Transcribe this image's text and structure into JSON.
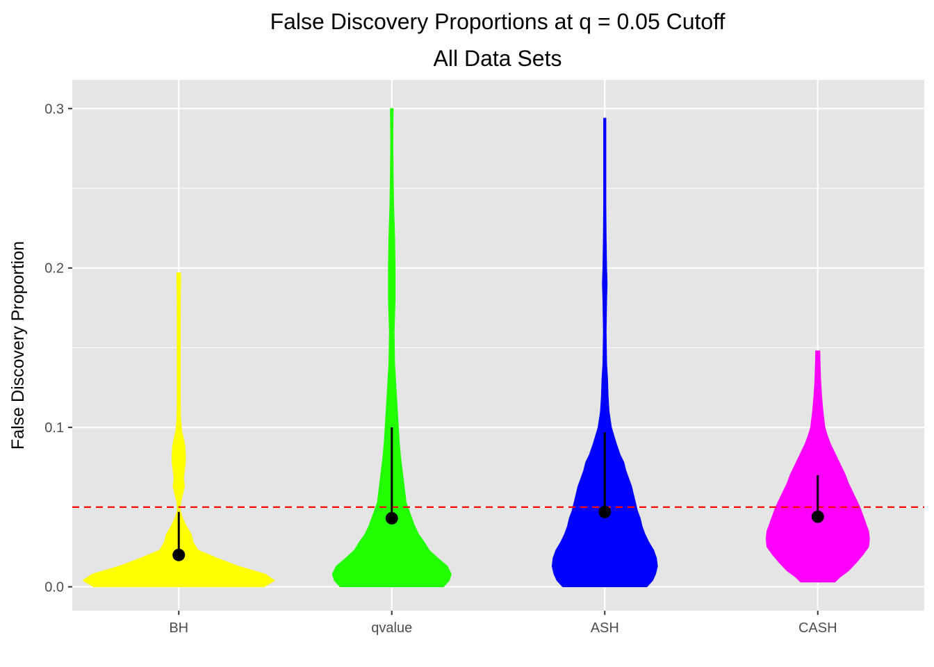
{
  "chart_data": {
    "type": "violin",
    "title": "False Discovery Proportions at q = 0.05 Cutoff",
    "subtitle": "All Data Sets",
    "xlabel": "",
    "ylabel": "False Discovery Proportion",
    "categories": [
      "BH",
      "qvalue",
      "ASH",
      "CASH"
    ],
    "yticks": [
      "0.0",
      "0.1",
      "0.2",
      "0.3"
    ],
    "ylim": [
      -0.015,
      0.318
    ],
    "grid": true,
    "legend": "none",
    "reference_line": {
      "y": 0.05,
      "color": "#ff0000",
      "style": "dashed"
    },
    "colors": [
      "#ffff00",
      "#22ff00",
      "#0000ff",
      "#ff00ff"
    ],
    "summary": [
      {
        "name": "BH",
        "median": 0.02,
        "upper": 0.047,
        "lower": 0.02
      },
      {
        "name": "qvalue",
        "median": 0.043,
        "upper": 0.1,
        "lower": 0.043
      },
      {
        "name": "ASH",
        "median": 0.047,
        "upper": 0.097,
        "lower": 0.047
      },
      {
        "name": "CASH",
        "median": 0.044,
        "upper": 0.07,
        "lower": 0.044
      }
    ],
    "violins": [
      {
        "name": "BH",
        "density": [
          [
            0.0,
            0.89
          ],
          [
            0.004,
            1.0
          ],
          [
            0.008,
            0.9
          ],
          [
            0.013,
            0.62
          ],
          [
            0.018,
            0.4
          ],
          [
            0.023,
            0.2
          ],
          [
            0.028,
            0.15
          ],
          [
            0.033,
            0.13
          ],
          [
            0.038,
            0.08
          ],
          [
            0.043,
            0.04
          ],
          [
            0.048,
            0.015
          ],
          [
            0.053,
            0.02
          ],
          [
            0.058,
            0.04
          ],
          [
            0.063,
            0.06
          ],
          [
            0.068,
            0.05
          ],
          [
            0.073,
            0.06
          ],
          [
            0.078,
            0.07
          ],
          [
            0.083,
            0.07
          ],
          [
            0.088,
            0.065
          ],
          [
            0.093,
            0.05
          ],
          [
            0.098,
            0.03
          ],
          [
            0.105,
            0.02
          ],
          [
            0.12,
            0.016
          ],
          [
            0.14,
            0.016
          ],
          [
            0.16,
            0.016
          ],
          [
            0.18,
            0.017
          ],
          [
            0.19,
            0.02
          ],
          [
            0.197,
            0.02
          ]
        ]
      },
      {
        "name": "qvalue",
        "density": [
          [
            0.0,
            0.54
          ],
          [
            0.004,
            0.6
          ],
          [
            0.008,
            0.62
          ],
          [
            0.013,
            0.58
          ],
          [
            0.018,
            0.48
          ],
          [
            0.023,
            0.39
          ],
          [
            0.028,
            0.34
          ],
          [
            0.033,
            0.28
          ],
          [
            0.038,
            0.24
          ],
          [
            0.043,
            0.21
          ],
          [
            0.048,
            0.18
          ],
          [
            0.053,
            0.15
          ],
          [
            0.058,
            0.14
          ],
          [
            0.063,
            0.13
          ],
          [
            0.068,
            0.12
          ],
          [
            0.073,
            0.11
          ],
          [
            0.078,
            0.1
          ],
          [
            0.083,
            0.09
          ],
          [
            0.09,
            0.08
          ],
          [
            0.1,
            0.07
          ],
          [
            0.11,
            0.06
          ],
          [
            0.12,
            0.05
          ],
          [
            0.13,
            0.04
          ],
          [
            0.14,
            0.03
          ],
          [
            0.16,
            0.025
          ],
          [
            0.18,
            0.035
          ],
          [
            0.2,
            0.035
          ],
          [
            0.22,
            0.03
          ],
          [
            0.24,
            0.02
          ],
          [
            0.26,
            0.015
          ],
          [
            0.28,
            0.012
          ],
          [
            0.3,
            0.015
          ]
        ]
      },
      {
        "name": "ASH",
        "density": [
          [
            0.0,
            0.44
          ],
          [
            0.004,
            0.5
          ],
          [
            0.008,
            0.53
          ],
          [
            0.013,
            0.55
          ],
          [
            0.018,
            0.54
          ],
          [
            0.023,
            0.51
          ],
          [
            0.028,
            0.46
          ],
          [
            0.033,
            0.42
          ],
          [
            0.038,
            0.39
          ],
          [
            0.043,
            0.37
          ],
          [
            0.048,
            0.34
          ],
          [
            0.053,
            0.32
          ],
          [
            0.058,
            0.3
          ],
          [
            0.063,
            0.28
          ],
          [
            0.068,
            0.25
          ],
          [
            0.073,
            0.22
          ],
          [
            0.078,
            0.2
          ],
          [
            0.083,
            0.16
          ],
          [
            0.09,
            0.12
          ],
          [
            0.1,
            0.07
          ],
          [
            0.11,
            0.045
          ],
          [
            0.12,
            0.035
          ],
          [
            0.13,
            0.03
          ],
          [
            0.14,
            0.02
          ],
          [
            0.16,
            0.015
          ],
          [
            0.18,
            0.02
          ],
          [
            0.19,
            0.025
          ],
          [
            0.2,
            0.02
          ],
          [
            0.22,
            0.015
          ],
          [
            0.24,
            0.012
          ],
          [
            0.26,
            0.012
          ],
          [
            0.28,
            0.012
          ],
          [
            0.294,
            0.012
          ]
        ]
      },
      {
        "name": "CASH",
        "density": [
          [
            0.003,
            0.18
          ],
          [
            0.006,
            0.23
          ],
          [
            0.01,
            0.32
          ],
          [
            0.015,
            0.4
          ],
          [
            0.02,
            0.47
          ],
          [
            0.025,
            0.53
          ],
          [
            0.03,
            0.54
          ],
          [
            0.035,
            0.53
          ],
          [
            0.04,
            0.5
          ],
          [
            0.045,
            0.47
          ],
          [
            0.05,
            0.44
          ],
          [
            0.055,
            0.4
          ],
          [
            0.06,
            0.36
          ],
          [
            0.065,
            0.32
          ],
          [
            0.07,
            0.29
          ],
          [
            0.075,
            0.25
          ],
          [
            0.08,
            0.21
          ],
          [
            0.085,
            0.17
          ],
          [
            0.09,
            0.13
          ],
          [
            0.095,
            0.1
          ],
          [
            0.1,
            0.075
          ],
          [
            0.11,
            0.055
          ],
          [
            0.12,
            0.04
          ],
          [
            0.13,
            0.03
          ],
          [
            0.14,
            0.025
          ],
          [
            0.148,
            0.022
          ]
        ]
      }
    ]
  }
}
